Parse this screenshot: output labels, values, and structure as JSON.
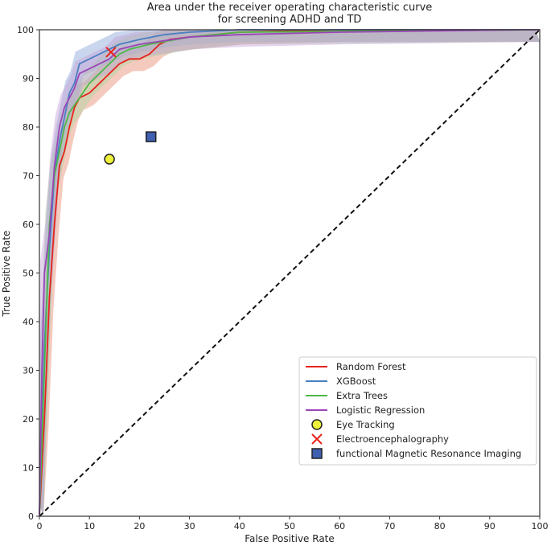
{
  "chart_data": {
    "type": "line",
    "title": [
      "Area under the receiver operating characteristic curve",
      "for screening ADHD and TD"
    ],
    "xlabel": "False Positive Rate",
    "ylabel": "True Positive Rate",
    "xlim": [
      0,
      100
    ],
    "ylim": [
      0,
      100
    ],
    "xticks": [
      0,
      10,
      20,
      30,
      40,
      50,
      60,
      70,
      80,
      90,
      100
    ],
    "yticks": [
      0,
      10,
      20,
      30,
      40,
      50,
      60,
      70,
      80,
      90,
      100
    ],
    "grid": false,
    "legend_position": "lower-right",
    "series": [
      {
        "name": "Random Forest",
        "color": "#e8221c",
        "band_color": "#e98a6e",
        "x": [
          0,
          1,
          2,
          3,
          4,
          5,
          6,
          7,
          8,
          10,
          12,
          14,
          16,
          18,
          20,
          22,
          24,
          26,
          30,
          40,
          60,
          100
        ],
        "y": [
          0,
          20,
          45,
          60,
          72,
          75,
          80,
          84,
          86,
          87,
          89,
          91,
          93,
          94,
          94,
          95,
          97,
          98,
          98.5,
          99.5,
          100,
          100
        ]
      },
      {
        "name": "XGBoost",
        "color": "#4a7fc1",
        "band_color": "#8aa3d8",
        "x": [
          0,
          1,
          2,
          3,
          4,
          5,
          6,
          7,
          8,
          10,
          12,
          14,
          16,
          20,
          25,
          30,
          40,
          100
        ],
        "y": [
          0,
          35,
          55,
          70,
          77,
          82,
          87,
          89,
          93,
          94,
          95,
          96,
          97,
          98,
          99,
          99.5,
          100,
          100
        ]
      },
      {
        "name": "Extra Trees",
        "color": "#4db848",
        "band_color": "#a8d8a0",
        "x": [
          0,
          1,
          2,
          3,
          4,
          5,
          6,
          8,
          10,
          12,
          14,
          16,
          18,
          22,
          30,
          40,
          100
        ],
        "y": [
          0,
          30,
          60,
          70,
          75,
          80,
          83,
          86,
          89,
          91,
          93,
          95,
          96,
          97,
          98.5,
          99.5,
          100
        ]
      },
      {
        "name": "Logistic Regression",
        "color": "#9b45b8",
        "band_color": "#c4a0d8",
        "x": [
          0,
          0.5,
          1,
          2,
          3,
          4,
          5,
          6,
          7,
          8,
          10,
          12,
          14,
          16,
          20,
          30,
          40,
          60,
          97,
          100
        ],
        "y": [
          0,
          30,
          50,
          58,
          72,
          80,
          84,
          86,
          88,
          91,
          92,
          93,
          94,
          96,
          97,
          98.5,
          99,
          99.5,
          100,
          100
        ]
      }
    ],
    "points": [
      {
        "name": "Eye Tracking",
        "marker": "circle",
        "color": "#eef23a",
        "x": 14.0,
        "y": 73.4
      },
      {
        "name": "Electroencephalography",
        "marker": "x",
        "color": "#e8221c",
        "x": 14.3,
        "y": 95.4
      },
      {
        "name": "functional Magnetic Resonance Imaging",
        "marker": "square",
        "color": "#3f5fb0",
        "x": 22.3,
        "y": 78.0
      }
    ],
    "diagonal": {
      "style": "dashed",
      "color": "#111"
    }
  }
}
